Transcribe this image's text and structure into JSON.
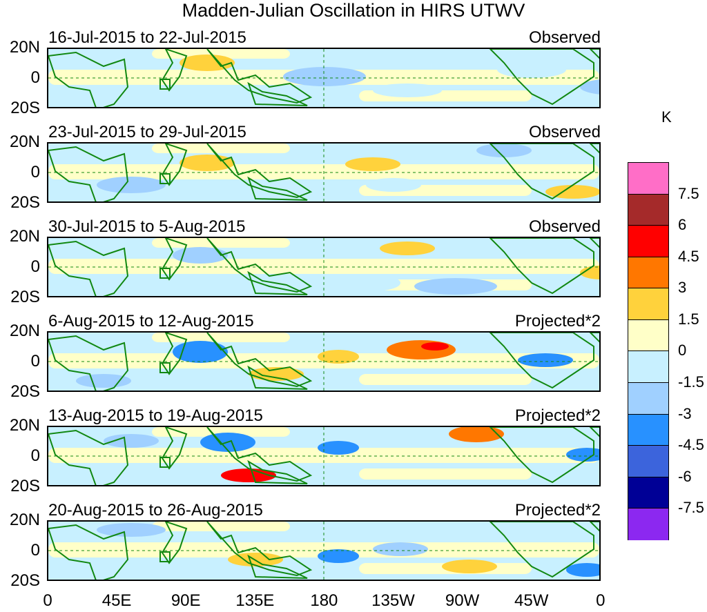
{
  "title": "Madden-Julian Oscillation in HIRS UTWV",
  "unit": "K",
  "lat_labels": [
    "20N",
    "0",
    "20S"
  ],
  "lon_labels": [
    "0",
    "45E",
    "90E",
    "135E",
    "180",
    "135W",
    "90W",
    "45W",
    "0"
  ],
  "panels": [
    {
      "dates": "16-Jul-2015 to 22-Jul-2015",
      "kind": "Observed"
    },
    {
      "dates": "23-Jul-2015 to 29-Jul-2015",
      "kind": "Observed"
    },
    {
      "dates": "30-Jul-2015 to 5-Aug-2015",
      "kind": "Observed"
    },
    {
      "dates": "6-Aug-2015 to 12-Aug-2015",
      "kind": "Projected*2"
    },
    {
      "dates": "13-Aug-2015 to 19-Aug-2015",
      "kind": "Projected*2"
    },
    {
      "dates": "20-Aug-2015 to 26-Aug-2015",
      "kind": "Projected*2"
    }
  ],
  "colorbar": {
    "levels": [
      "7.5",
      "6",
      "4.5",
      "3",
      "1.5",
      "0",
      "-1.5",
      "-3",
      "-4.5",
      "-6",
      "-7.5"
    ],
    "colors": [
      "#ff6ec7",
      "#a52a2a",
      "#ff0000",
      "#ff7700",
      "#ffd23c",
      "#ffffc8",
      "#c8f0ff",
      "#a0d0ff",
      "#2891ff",
      "#3c64dc",
      "#000096",
      "#8c28f0"
    ]
  },
  "map_colors": {
    "land_outline": "#118811",
    "guide_line": "#118811"
  }
}
